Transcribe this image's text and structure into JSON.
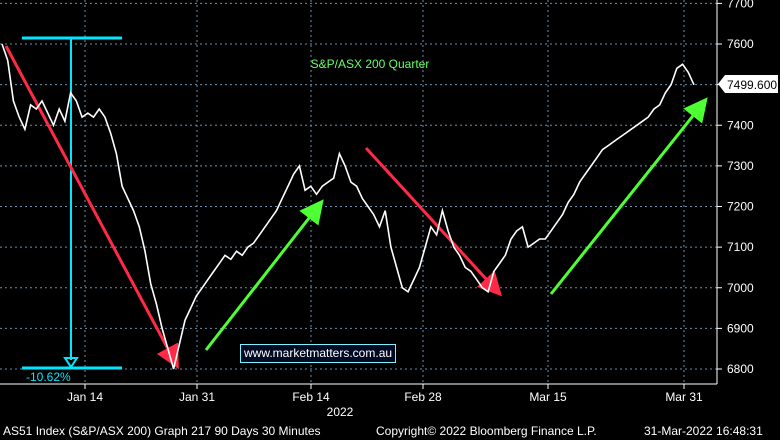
{
  "chart_data": {
    "type": "line",
    "title": "S&P/ASX 200 Quarter",
    "xlabel": "2022",
    "ylabel": "",
    "ylim": [
      6750,
      7750
    ],
    "yticks": [
      6800,
      6900,
      7000,
      7100,
      7200,
      7300,
      7400,
      7500,
      7600,
      7700
    ],
    "xticks": [
      "Jan 14",
      "Jan 31",
      "Feb 14",
      "Feb 28",
      "Mar 15",
      "Mar 31"
    ],
    "last_price_label": "7499.600",
    "grid": true,
    "series": [
      {
        "values": [
          7600,
          7560,
          7460,
          7420,
          7390,
          7450,
          7440,
          7460,
          7430,
          7400,
          7440,
          7410,
          7480,
          7460,
          7420,
          7430,
          7420,
          7440,
          7420,
          7380,
          7330,
          7250,
          7220,
          7190,
          7150,
          7090,
          7010,
          6960,
          6900,
          6850,
          6800,
          6860,
          6920,
          6950,
          6980,
          7000,
          7020,
          7040,
          7060,
          7080,
          7070,
          7090,
          7080,
          7100,
          7110,
          7130,
          7150,
          7170,
          7190,
          7220,
          7250,
          7280,
          7300,
          7240,
          7250,
          7230,
          7250,
          7260,
          7270,
          7330,
          7300,
          7260,
          7250,
          7220,
          7200,
          7180,
          7150,
          7190,
          7100,
          7050,
          7000,
          6990,
          7020,
          7050,
          7100,
          7150,
          7130,
          7190,
          7140,
          7100,
          7080,
          7050,
          7040,
          7020,
          7000,
          6990,
          7040,
          7060,
          7080,
          7120,
          7140,
          7150,
          7100,
          7110,
          7120,
          7120,
          7140,
          7160,
          7180,
          7210,
          7230,
          7260,
          7280,
          7300,
          7320,
          7340,
          7350,
          7360,
          7370,
          7380,
          7390,
          7400,
          7410,
          7420,
          7440,
          7450,
          7480,
          7500,
          7540,
          7550,
          7530,
          7499.6
        ]
      }
    ],
    "annotations": {
      "range_label": "-10.62%",
      "url": "www.marketmatters.com.au"
    }
  },
  "footer": {
    "left": "AS51 Index (S&P/ASX 200) Graph 217 90 Days 30 Minutes",
    "center": "Copyright© 2022 Bloomberg Finance L.P.",
    "right": "31-Mar-2022 16:48:31"
  },
  "colors": {
    "background": "#000000",
    "grid": "#6a8fb0",
    "price_line": "#ffffff",
    "down_arrow": "#ff2a45",
    "up_arrow": "#4dff33",
    "range_marker": "#00e8ff",
    "title": "#66ff66"
  }
}
